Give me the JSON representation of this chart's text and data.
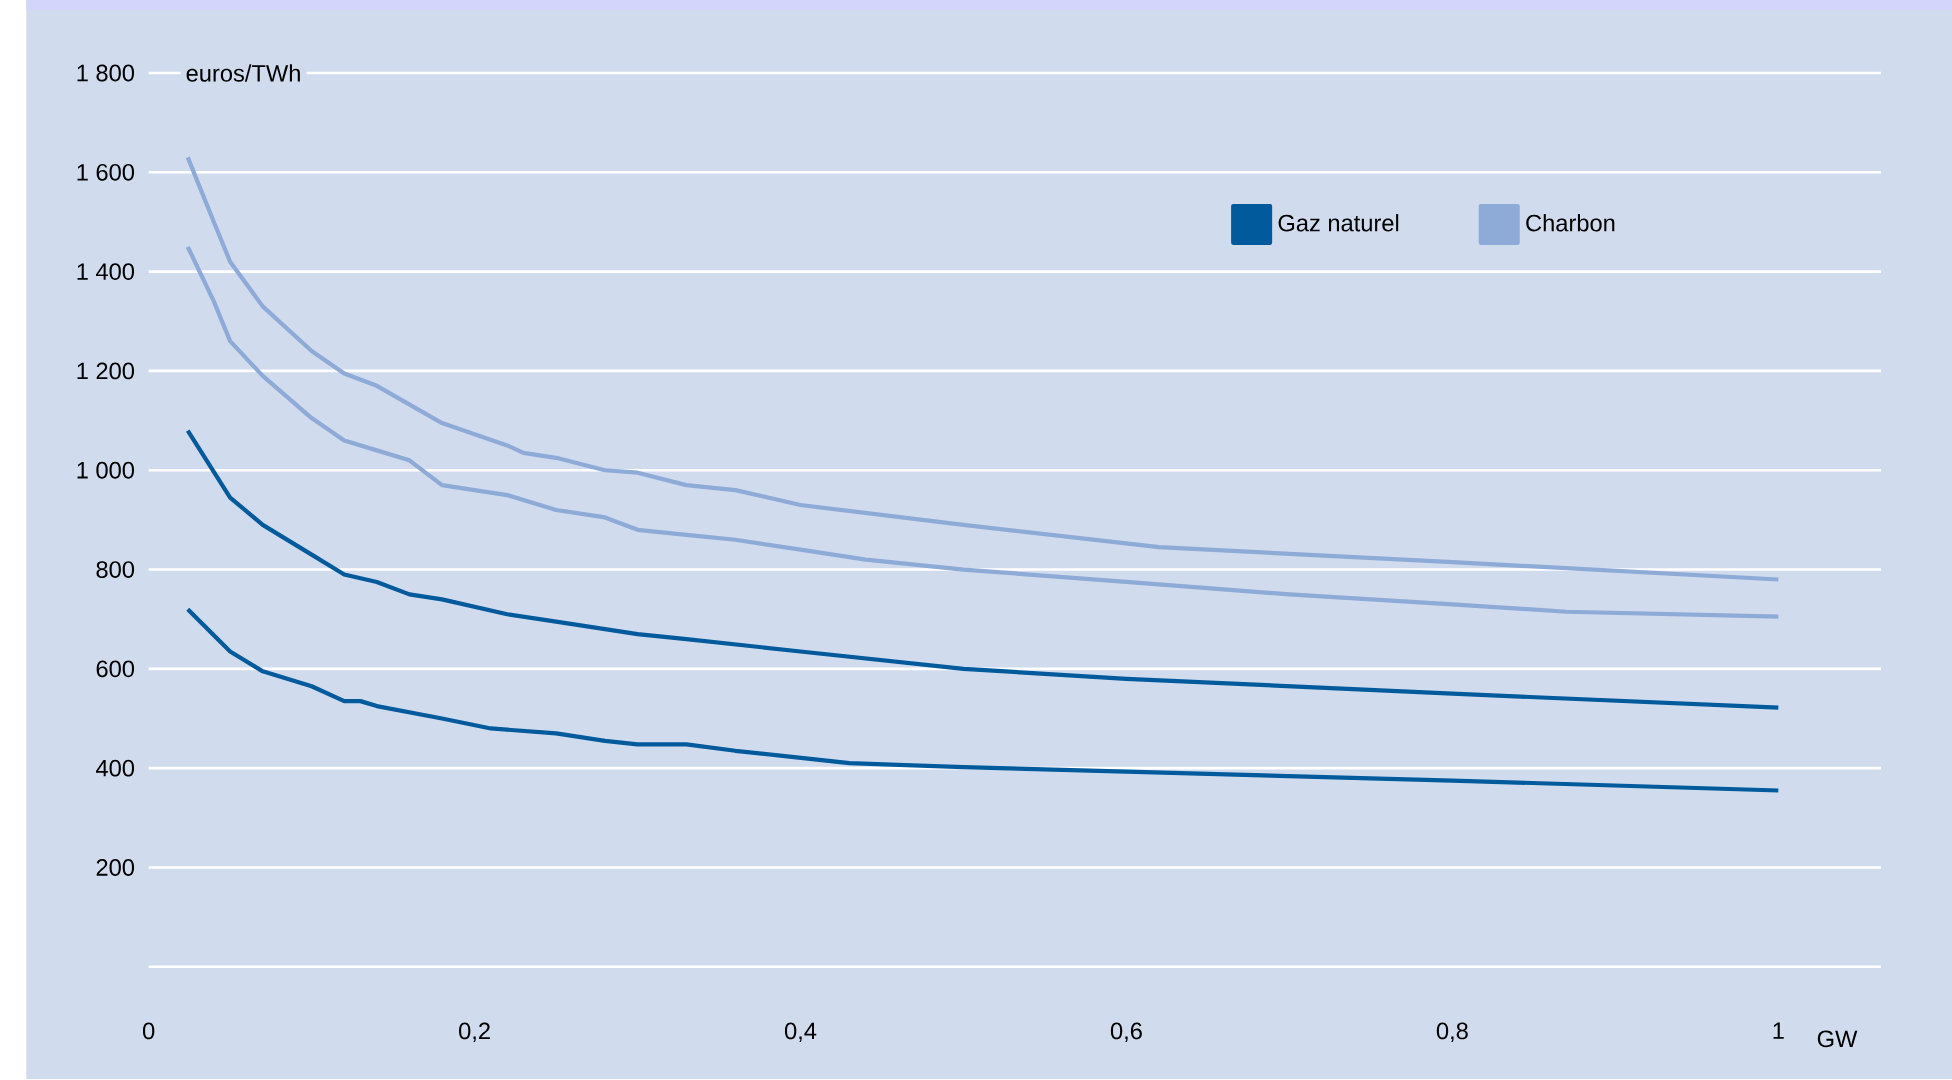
{
  "chart_data": {
    "type": "line",
    "xlabel": "GW",
    "ylabel": "euros/TWh",
    "xlim": [
      0,
      1.063
    ],
    "ylim": [
      0,
      1800
    ],
    "xticks": [
      0,
      {
        "value": 0.2,
        "label": "0,2"
      },
      {
        "value": 0.4,
        "label": "0,4"
      },
      {
        "value": 0.6,
        "label": "0,6"
      },
      {
        "value": 0.8,
        "label": "0,8"
      },
      1
    ],
    "yticks": [
      {
        "value": 0,
        "label": null
      },
      200,
      400,
      600,
      800,
      {
        "value": 1000,
        "label": "1 000"
      },
      {
        "value": 1200,
        "label": "1 200"
      },
      {
        "value": 1400,
        "label": "1 400"
      },
      {
        "value": 1600,
        "label": "1 600"
      },
      {
        "value": 1800,
        "label": "1 800"
      }
    ],
    "grid": "y",
    "legend": "top right",
    "marker": "none",
    "line_style": "solid",
    "series": [
      {
        "name": "Gaz naturel",
        "color": "#005a9c",
        "x": [
          0.024,
          0.05,
          0.07,
          0.1,
          0.12,
          0.14,
          0.16,
          0.18,
          0.22,
          0.25,
          0.3,
          0.33,
          0.4,
          0.5,
          0.6,
          0.8,
          1.0
        ],
        "values": [
          1080,
          945,
          890,
          830,
          790,
          775,
          750,
          740,
          710,
          695,
          670,
          660,
          635,
          600,
          580,
          550,
          522
        ]
      },
      {
        "color": "#005a9c",
        "x": [
          0.024,
          0.05,
          0.07,
          0.1,
          0.12,
          0.13,
          0.14,
          0.18,
          0.21,
          0.25,
          0.28,
          0.3,
          0.33,
          0.36,
          0.43,
          0.5,
          0.6,
          0.8,
          1.0
        ],
        "values": [
          720,
          635,
          595,
          565,
          535,
          535,
          525,
          500,
          480,
          470,
          455,
          448,
          448,
          435,
          410,
          402,
          393,
          375,
          355
        ]
      },
      {
        "name": "Charbon",
        "color": "#8eaad6",
        "x": [
          0.024,
          0.04,
          0.05,
          0.07,
          0.1,
          0.12,
          0.14,
          0.18,
          0.22,
          0.23,
          0.25,
          0.28,
          0.3,
          0.33,
          0.36,
          0.4,
          0.5,
          0.62,
          0.8,
          1.0
        ],
        "values": [
          1630,
          1500,
          1420,
          1330,
          1240,
          1195,
          1170,
          1095,
          1050,
          1035,
          1025,
          1000,
          995,
          970,
          960,
          930,
          890,
          845,
          815,
          780
        ]
      },
      {
        "color": "#8eaad6",
        "x": [
          0.024,
          0.04,
          0.05,
          0.07,
          0.1,
          0.12,
          0.14,
          0.16,
          0.18,
          0.22,
          0.25,
          0.28,
          0.3,
          0.33,
          0.36,
          0.4,
          0.44,
          0.5,
          0.6,
          0.7,
          0.8,
          0.87,
          1.0
        ],
        "values": [
          1450,
          1340,
          1260,
          1190,
          1105,
          1060,
          1040,
          1020,
          970,
          950,
          920,
          905,
          880,
          870,
          860,
          840,
          820,
          800,
          775,
          750,
          730,
          715,
          705
        ]
      }
    ]
  }
}
